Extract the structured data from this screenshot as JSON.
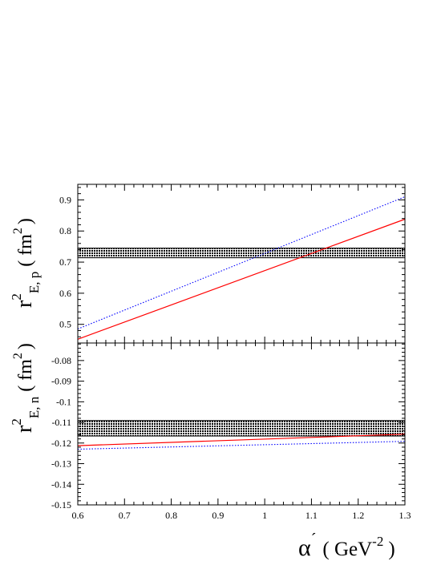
{
  "chart_data": [
    {
      "type": "line",
      "panel": "top",
      "ylabel": "r",
      "ylabel_superscript": "2",
      "ylabel_subscript": "E, p",
      "ylabel_unit": "( fm",
      "ylabel_unit_superscript": "2",
      "ylabel_unit_close": ")",
      "xlim": [
        0.6,
        1.3
      ],
      "ylim": [
        0.44,
        0.95
      ],
      "yticks": [
        {
          "v": 0.5,
          "label": "0.5"
        },
        {
          "v": 0.6,
          "label": "0.6"
        },
        {
          "v": 0.7,
          "label": "0.7"
        },
        {
          "v": 0.8,
          "label": "0.8"
        },
        {
          "v": 0.9,
          "label": "0.9"
        }
      ],
      "band": {
        "y0": 0.714,
        "y1": 0.745,
        "color": "#000000"
      },
      "series": [
        {
          "x": [
            0.6,
            1.3
          ],
          "y": [
            0.452,
            0.838
          ],
          "color": "#ff0000",
          "style": "solid"
        },
        {
          "x": [
            0.6,
            1.3
          ],
          "y": [
            0.485,
            0.91
          ],
          "color": "#0000ff",
          "style": "dotted"
        }
      ]
    },
    {
      "type": "line",
      "panel": "bottom",
      "ylabel": "r",
      "ylabel_superscript": "2",
      "ylabel_subscript": "E, n",
      "ylabel_unit": "( fm",
      "ylabel_unit_superscript": "2",
      "ylabel_unit_close": ")",
      "xlabel": "α",
      "xlabel_prime": "´",
      "xlabel_unit": "( GeV",
      "xlabel_unit_superscript": "-2",
      "xlabel_unit_close": ")",
      "xlim": [
        0.6,
        1.3
      ],
      "ylim": [
        -0.15,
        -0.0715
      ],
      "xticks": [
        {
          "v": 0.6,
          "label": "0.6"
        },
        {
          "v": 0.7,
          "label": "0.7"
        },
        {
          "v": 0.8,
          "label": "0.8"
        },
        {
          "v": 0.9,
          "label": "0.9"
        },
        {
          "v": 1.0,
          "label": "1"
        },
        {
          "v": 1.1,
          "label": "1.1"
        },
        {
          "v": 1.2,
          "label": "1.2"
        },
        {
          "v": 1.3,
          "label": "1.3"
        }
      ],
      "yticks": [
        {
          "v": -0.15,
          "label": "-0.15"
        },
        {
          "v": -0.14,
          "label": "-0.14"
        },
        {
          "v": -0.13,
          "label": "-0.13"
        },
        {
          "v": -0.12,
          "label": "-0.12"
        },
        {
          "v": -0.11,
          "label": "-0.11"
        },
        {
          "v": -0.1,
          "label": "-0.1"
        },
        {
          "v": -0.09,
          "label": "-0.09"
        },
        {
          "v": -0.08,
          "label": "-0.08"
        }
      ],
      "band": {
        "y0": -0.1166,
        "y1": -0.1091,
        "color": "#000000"
      },
      "series": [
        {
          "x": [
            0.6,
            1.3
          ],
          "y": [
            -0.1213,
            -0.1157
          ],
          "color": "#ff0000",
          "style": "solid"
        },
        {
          "x": [
            0.6,
            1.3
          ],
          "y": [
            -0.123,
            -0.1192
          ],
          "color": "#0000ff",
          "style": "dotted"
        }
      ]
    }
  ]
}
